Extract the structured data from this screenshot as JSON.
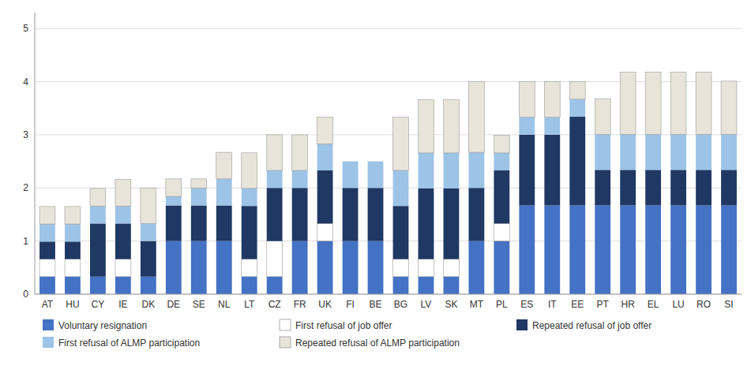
{
  "chart_data": {
    "type": "bar",
    "stacked": true,
    "grid": true,
    "legend": "bottom",
    "categories": [
      "AT",
      "HU",
      "CY",
      "IE",
      "DK",
      "DE",
      "SE",
      "NL",
      "LT",
      "CZ",
      "FR",
      "UK",
      "FI",
      "BE",
      "BG",
      "LV",
      "SK",
      "MT",
      "PL",
      "ES",
      "IT",
      "EE",
      "PT",
      "HR",
      "EL",
      "LU",
      "RO",
      "SI"
    ],
    "series": [
      {
        "name": "Voluntary resignation",
        "color": "#4472c4",
        "values": [
          0.33,
          0.33,
          0.33,
          0.33,
          0.33,
          1.0,
          1.0,
          1.0,
          0.33,
          0.33,
          1.0,
          1.0,
          1.0,
          1.0,
          0.33,
          0.33,
          0.33,
          1.0,
          1.0,
          1.67,
          1.67,
          1.67,
          1.67,
          1.67,
          1.67,
          1.67,
          1.67,
          1.67
        ]
      },
      {
        "name": "First refusal of job offer",
        "color": "#ffffff",
        "values": [
          0.33,
          0.33,
          0.0,
          0.33,
          0.0,
          0.0,
          0.0,
          0.0,
          0.33,
          0.67,
          0.0,
          0.33,
          0.0,
          0.0,
          0.33,
          0.33,
          0.33,
          0.0,
          0.33,
          0.0,
          0.0,
          0.0,
          0.0,
          0.0,
          0.0,
          0.0,
          0.0,
          0.0
        ]
      },
      {
        "name": "Repeated refusal of job offer",
        "color": "#1f3864",
        "values": [
          0.33,
          0.33,
          1.0,
          0.67,
          0.67,
          0.67,
          0.67,
          0.67,
          1.0,
          1.0,
          1.0,
          1.0,
          1.0,
          1.0,
          1.0,
          1.33,
          1.33,
          1.0,
          1.0,
          1.33,
          1.33,
          1.67,
          0.67,
          0.67,
          0.67,
          0.67,
          0.67,
          0.67
        ]
      },
      {
        "name": "First refusal of ALMP participation",
        "color": "#9dc3e6",
        "values": [
          0.33,
          0.33,
          0.33,
          0.33,
          0.33,
          0.17,
          0.33,
          0.5,
          0.33,
          0.33,
          0.33,
          0.5,
          0.5,
          0.5,
          0.67,
          0.67,
          0.67,
          0.67,
          0.33,
          0.33,
          0.33,
          0.33,
          0.67,
          0.67,
          0.67,
          0.67,
          0.67,
          0.67
        ]
      },
      {
        "name": "Repeated refusal of ALMP participation",
        "color": "#e8e4d9",
        "values": [
          0.33,
          0.33,
          0.33,
          0.5,
          0.67,
          0.33,
          0.17,
          0.5,
          0.67,
          0.67,
          0.67,
          0.5,
          0.0,
          0.0,
          1.0,
          1.0,
          1.0,
          1.33,
          0.33,
          0.67,
          0.67,
          0.33,
          0.67,
          1.17,
          1.17,
          1.17,
          1.17,
          1.0
        ]
      }
    ],
    "ylim": [
      0,
      5.3
    ],
    "yticks": [
      0,
      1,
      2,
      3,
      4,
      5
    ]
  }
}
